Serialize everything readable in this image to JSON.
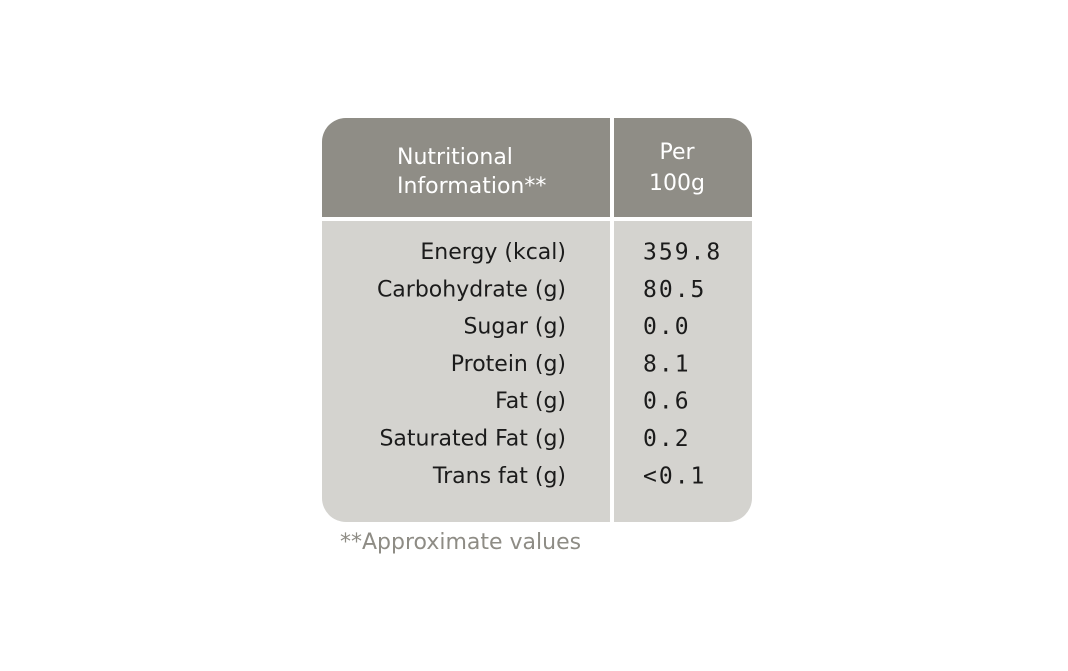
{
  "header": {
    "title_lines": [
      "Nutritional",
      "Information**"
    ],
    "unit_lines": [
      "Per",
      "100g"
    ]
  },
  "table": {
    "rows": [
      [
        "Energy (kcal)",
        "359.8"
      ],
      [
        "Carbohydrate (g)",
        "80.5"
      ],
      [
        "Sugar (g)",
        "0.0"
      ],
      [
        "Protein (g)",
        "8.1"
      ],
      [
        "Fat (g)",
        "0.6"
      ],
      [
        "Saturated Fat (g)",
        "0.2"
      ],
      [
        "Trans fat (g)",
        "<0.1"
      ]
    ]
  },
  "footnote": "**Approximate values"
}
